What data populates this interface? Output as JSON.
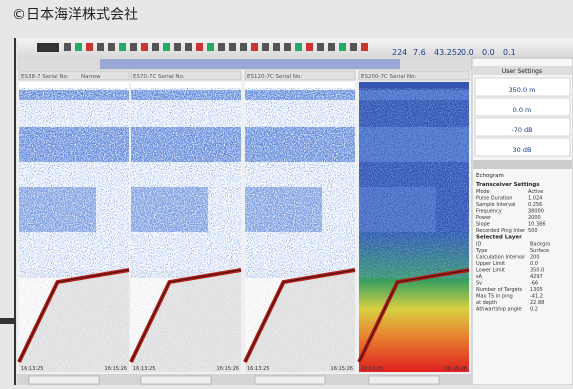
{
  "caption": "©日本海洋株式会社",
  "toolbar": {
    "readouts": [
      "224",
      "7.6",
      "43.252",
      "0.0",
      "0.0",
      "0.1"
    ]
  },
  "panels": [
    {
      "title": "ES38-7 Serial No:",
      "mode": "Narrow"
    },
    {
      "title": "ES70-7C Serial No:"
    },
    {
      "title": "ES120-7C Serial No:"
    },
    {
      "title": "ES200-7C Serial No:"
    }
  ],
  "time_labels": [
    "16:13:25",
    "16:15:26"
  ],
  "side": {
    "header": "User Settings",
    "range": "350.0 m",
    "start": "0.0 m",
    "tvg": "-70 dB",
    "gain": "30 dB",
    "tab": "Echogram",
    "section": "Transceiver Settings",
    "rows": [
      [
        "Mode",
        "Active"
      ],
      [
        "Pulse Duration",
        "1.024"
      ],
      [
        "Sample Interval",
        "0.256"
      ],
      [
        "Frequency",
        "38000"
      ],
      [
        "Power",
        "2000"
      ],
      [
        "Slope",
        "10.386"
      ],
      [
        "Recorded Ping Inter",
        "500"
      ]
    ],
    "layer": "Selected Layer",
    "layer_rows": [
      [
        "ID",
        "Backgro"
      ],
      [
        "Type",
        "Surface"
      ],
      [
        "Calculation Interval",
        "200"
      ],
      [
        "Upper Limit",
        "0.0"
      ],
      [
        "Lower Limit",
        "350.0"
      ],
      [
        "sA",
        "4297"
      ],
      [
        "Sv",
        "-66"
      ],
      [
        "Number of Targets",
        "1305"
      ],
      [
        "Max TS in ping",
        "-41.2"
      ],
      [
        "at depth",
        "22.88"
      ],
      [
        "Athwartship angle",
        "0.2"
      ]
    ]
  }
}
